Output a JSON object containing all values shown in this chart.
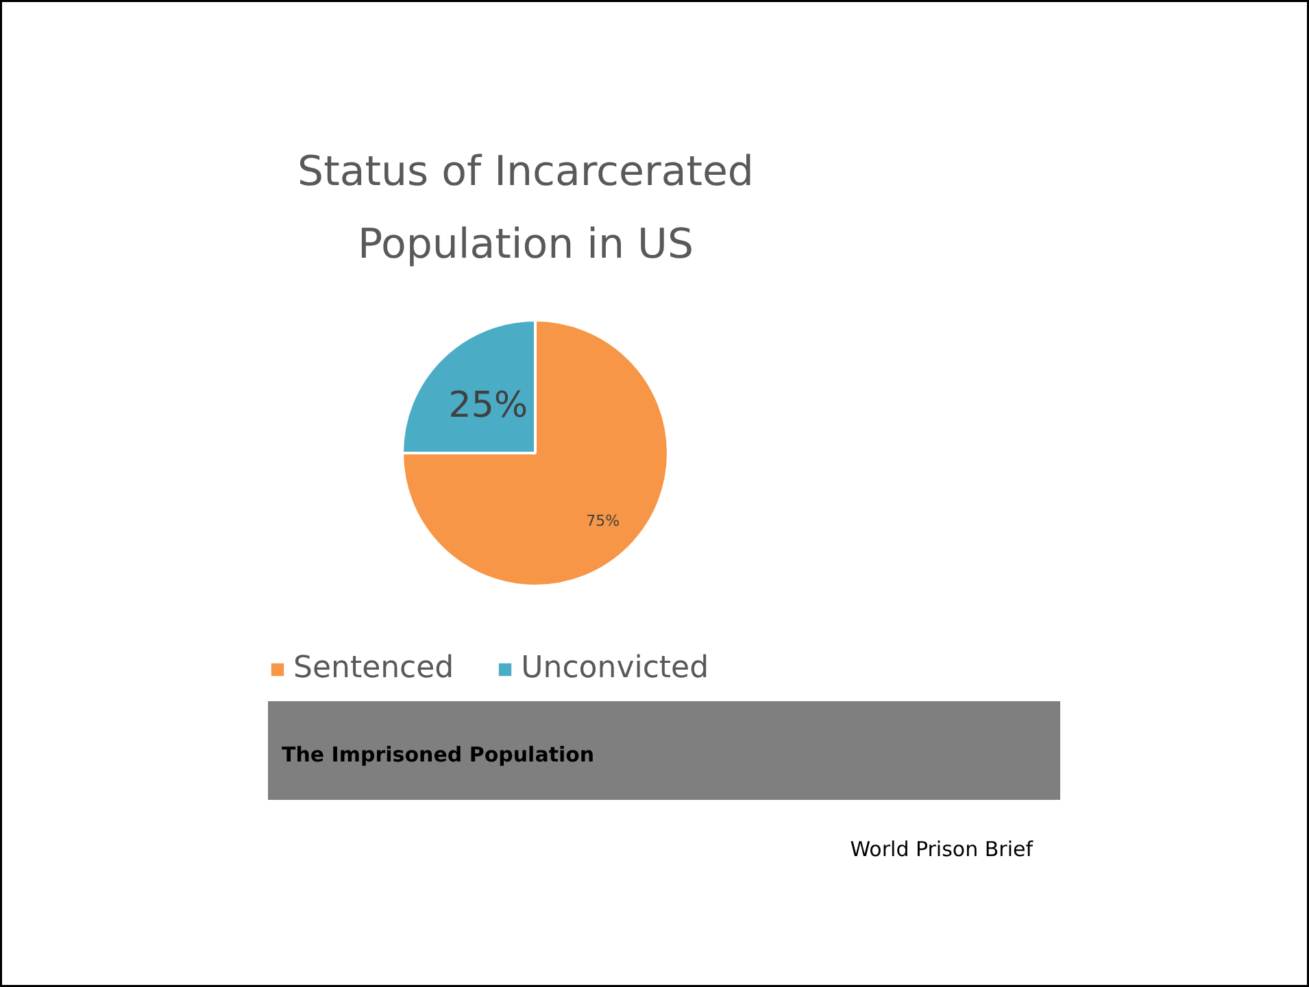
{
  "chart_data": {
    "type": "pie",
    "title": "Status of Incarcerated Population in US",
    "categories": [
      "Sentenced",
      "Unconvicted"
    ],
    "values": [
      75,
      25
    ],
    "colors": [
      "#f79646",
      "#4bacc6"
    ],
    "value_labels": [
      "75%",
      "25%"
    ],
    "legend": "bottom",
    "annotations": [
      "The Imprisoned Population",
      "World Prison Brief"
    ]
  }
}
